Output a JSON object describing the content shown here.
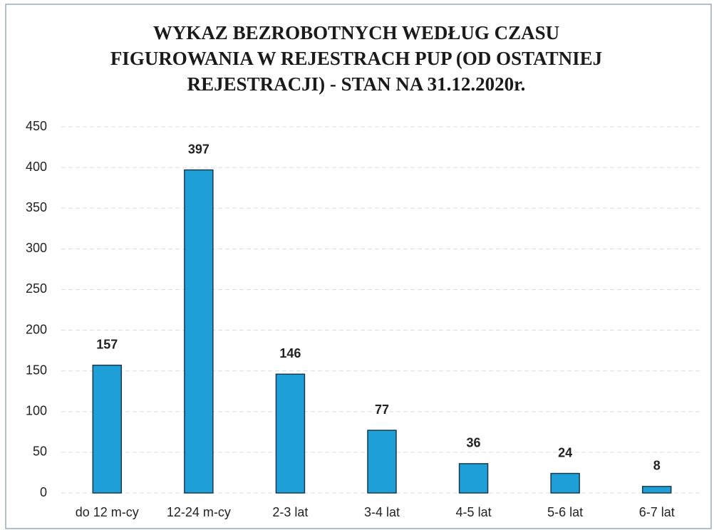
{
  "chart_data": {
    "type": "bar",
    "title": "WYKAZ BEZROBOTNYCH WEDŁUG CZASU FIGUROWANIA W REJESTRACH PUP (OD OSTATNIEJ REJESTRACJI) - STAN NA 31.12.2020r.",
    "categories": [
      "do 12 m-cy",
      "12-24 m-cy",
      "2-3 lat",
      "3-4 lat",
      "4-5 lat",
      "5-6 lat",
      "6-7 lat"
    ],
    "values": [
      157,
      397,
      146,
      77,
      36,
      24,
      8
    ],
    "color": "#1e9fd8",
    "ylim": [
      0,
      450
    ],
    "yticks": [
      0,
      50,
      100,
      150,
      200,
      250,
      300,
      350,
      400,
      450
    ],
    "grid": true
  }
}
